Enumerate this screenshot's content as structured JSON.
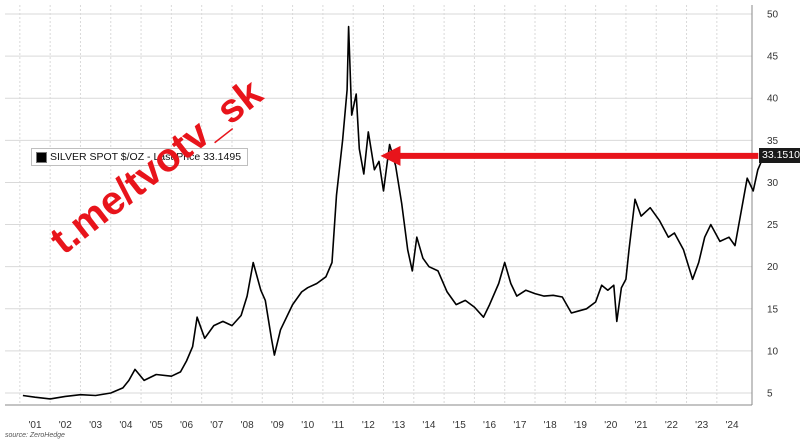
{
  "chart_data": {
    "type": "line",
    "title": "",
    "xlabel": "",
    "ylabel": "",
    "legend": {
      "label": "SILVER SPOT $/OZ - Last Price 33.1495",
      "placement": "top-left"
    },
    "last_value_badge": "33.1510",
    "x_tick_labels": [
      "'01",
      "'02",
      "'03",
      "'04",
      "'05",
      "'06",
      "'07",
      "'08",
      "'09",
      "'10",
      "'11",
      "'12",
      "'13",
      "'14",
      "'15",
      "'16",
      "'17",
      "'18",
      "'19",
      "'20",
      "'21",
      "'22",
      "'23",
      "'24"
    ],
    "y_tick_labels": [
      "5",
      "10",
      "15",
      "20",
      "25",
      "30",
      "35",
      "40",
      "45",
      "50"
    ],
    "ylim": [
      3,
      51
    ],
    "xlim": [
      2000.6,
      2025.1
    ],
    "grid": true,
    "series": [
      {
        "name": "SILVER SPOT $/OZ",
        "color": "#000000",
        "x": [
          2000.6,
          2001.0,
          2001.5,
          2002.0,
          2002.5,
          2003.0,
          2003.5,
          2003.9,
          2004.1,
          2004.3,
          2004.6,
          2005.0,
          2005.5,
          2005.8,
          2006.0,
          2006.2,
          2006.35,
          2006.6,
          2006.9,
          2007.2,
          2007.5,
          2007.8,
          2008.0,
          2008.2,
          2008.45,
          2008.6,
          2008.8,
          2008.9,
          2009.1,
          2009.5,
          2009.8,
          2010.0,
          2010.3,
          2010.6,
          2010.8,
          2010.95,
          2011.15,
          2011.3,
          2011.35,
          2011.45,
          2011.6,
          2011.7,
          2011.85,
          2012.0,
          2012.2,
          2012.35,
          2012.5,
          2012.7,
          2012.9,
          2013.1,
          2013.3,
          2013.45,
          2013.6,
          2013.8,
          2014.0,
          2014.3,
          2014.6,
          2014.9,
          2015.2,
          2015.5,
          2015.8,
          2016.0,
          2016.3,
          2016.5,
          2016.7,
          2016.9,
          2017.2,
          2017.5,
          2017.8,
          2018.1,
          2018.4,
          2018.7,
          2018.9,
          2019.2,
          2019.5,
          2019.7,
          2019.9,
          2020.1,
          2020.2,
          2020.35,
          2020.5,
          2020.6,
          2020.8,
          2021.0,
          2021.3,
          2021.6,
          2021.9,
          2022.1,
          2022.4,
          2022.7,
          2022.9,
          2023.1,
          2023.3,
          2023.6,
          2023.9,
          2024.1,
          2024.3,
          2024.5,
          2024.7,
          2024.85,
          2025.05
        ],
        "y": [
          4.7,
          4.5,
          4.3,
          4.6,
          4.8,
          4.7,
          5.0,
          5.6,
          6.5,
          7.8,
          6.5,
          7.2,
          7.0,
          7.5,
          8.8,
          10.5,
          14.0,
          11.5,
          13.0,
          13.5,
          13.0,
          14.2,
          16.5,
          20.5,
          17.2,
          16.0,
          11.5,
          9.5,
          12.5,
          15.5,
          17.0,
          17.5,
          18.0,
          18.8,
          20.5,
          28.5,
          35.0,
          41.0,
          48.5,
          38.0,
          40.5,
          34.0,
          31.0,
          36.0,
          31.5,
          32.5,
          29.0,
          34.5,
          32.0,
          27.5,
          22.0,
          19.5,
          23.5,
          21.0,
          20.0,
          19.5,
          17.0,
          15.5,
          16.0,
          15.2,
          14.0,
          15.5,
          18.0,
          20.5,
          18.0,
          16.5,
          17.2,
          16.8,
          16.5,
          16.6,
          16.4,
          14.5,
          14.7,
          15.0,
          15.8,
          17.8,
          17.2,
          17.8,
          13.5,
          17.5,
          18.5,
          22.0,
          28.0,
          26.0,
          27.0,
          25.5,
          23.5,
          24.0,
          22.0,
          18.5,
          20.5,
          23.5,
          25.0,
          23.0,
          23.5,
          22.5,
          26.5,
          30.5,
          29.0,
          31.5,
          33.15
        ]
      }
    ],
    "annotations": [
      {
        "type": "arrow",
        "color": "#e8141b",
        "from": {
          "x": 2025.0,
          "y": 33.15
        },
        "to": {
          "x": 2012.4,
          "y": 33.15
        }
      }
    ]
  },
  "watermark": "t.me/tvotv_sk",
  "source": "source: ZeroHedge",
  "colors": {
    "arrow": "#e8141b",
    "line": "#000000",
    "grid": "#d9d9d9",
    "last_dot": "#8fd14f"
  }
}
